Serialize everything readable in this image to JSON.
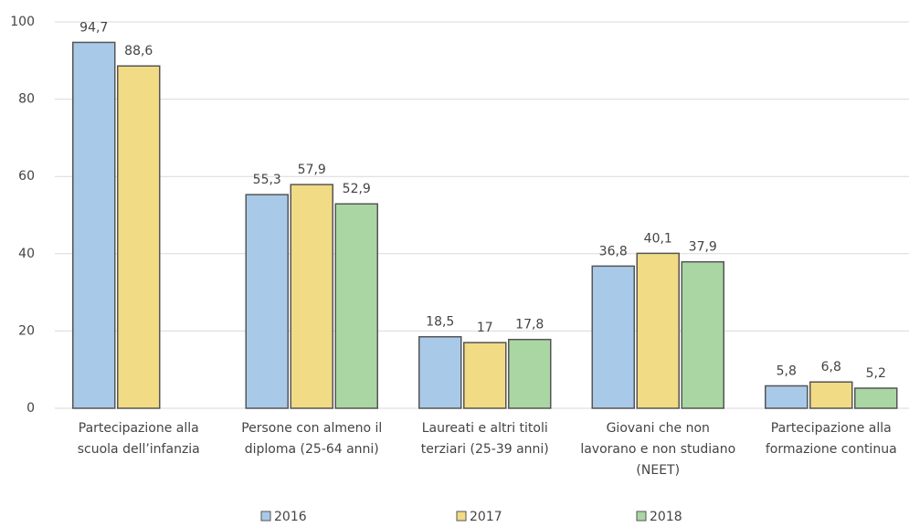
{
  "chart_data": {
    "type": "bar",
    "categories": [
      "Partecipazione alla scuola dell’infanzia",
      "Persone con almeno il diploma (25-64 anni)",
      "Laureati e altri titoli terziari (25-39 anni)",
      "Giovani che non lavorano e non studiano (NEET)",
      "Partecipazione alla formazione continua"
    ],
    "series": [
      {
        "name": "2016",
        "color": "#a9c9e8",
        "values": [
          94.7,
          55.3,
          18.5,
          36.8,
          5.8
        ],
        "value_labels": [
          "94,7",
          "55,3",
          "18,5",
          "36,8",
          "5,8"
        ]
      },
      {
        "name": "2017",
        "color": "#f1db85",
        "values": [
          88.6,
          57.9,
          17,
          40.1,
          6.8
        ],
        "value_labels": [
          "88,6",
          "57,9",
          "17",
          "40,1",
          "6,8"
        ]
      },
      {
        "name": "2018",
        "color": "#a9d6a2",
        "values": [
          null,
          52.9,
          17.8,
          37.9,
          5.2
        ],
        "value_labels": [
          null,
          "52,9",
          "17,8",
          "37,9",
          "5,2"
        ]
      }
    ],
    "ylim": [
      0,
      100
    ],
    "yticks": [
      0,
      20,
      40,
      60,
      80,
      100
    ],
    "grid": true,
    "legend": "bottom"
  }
}
